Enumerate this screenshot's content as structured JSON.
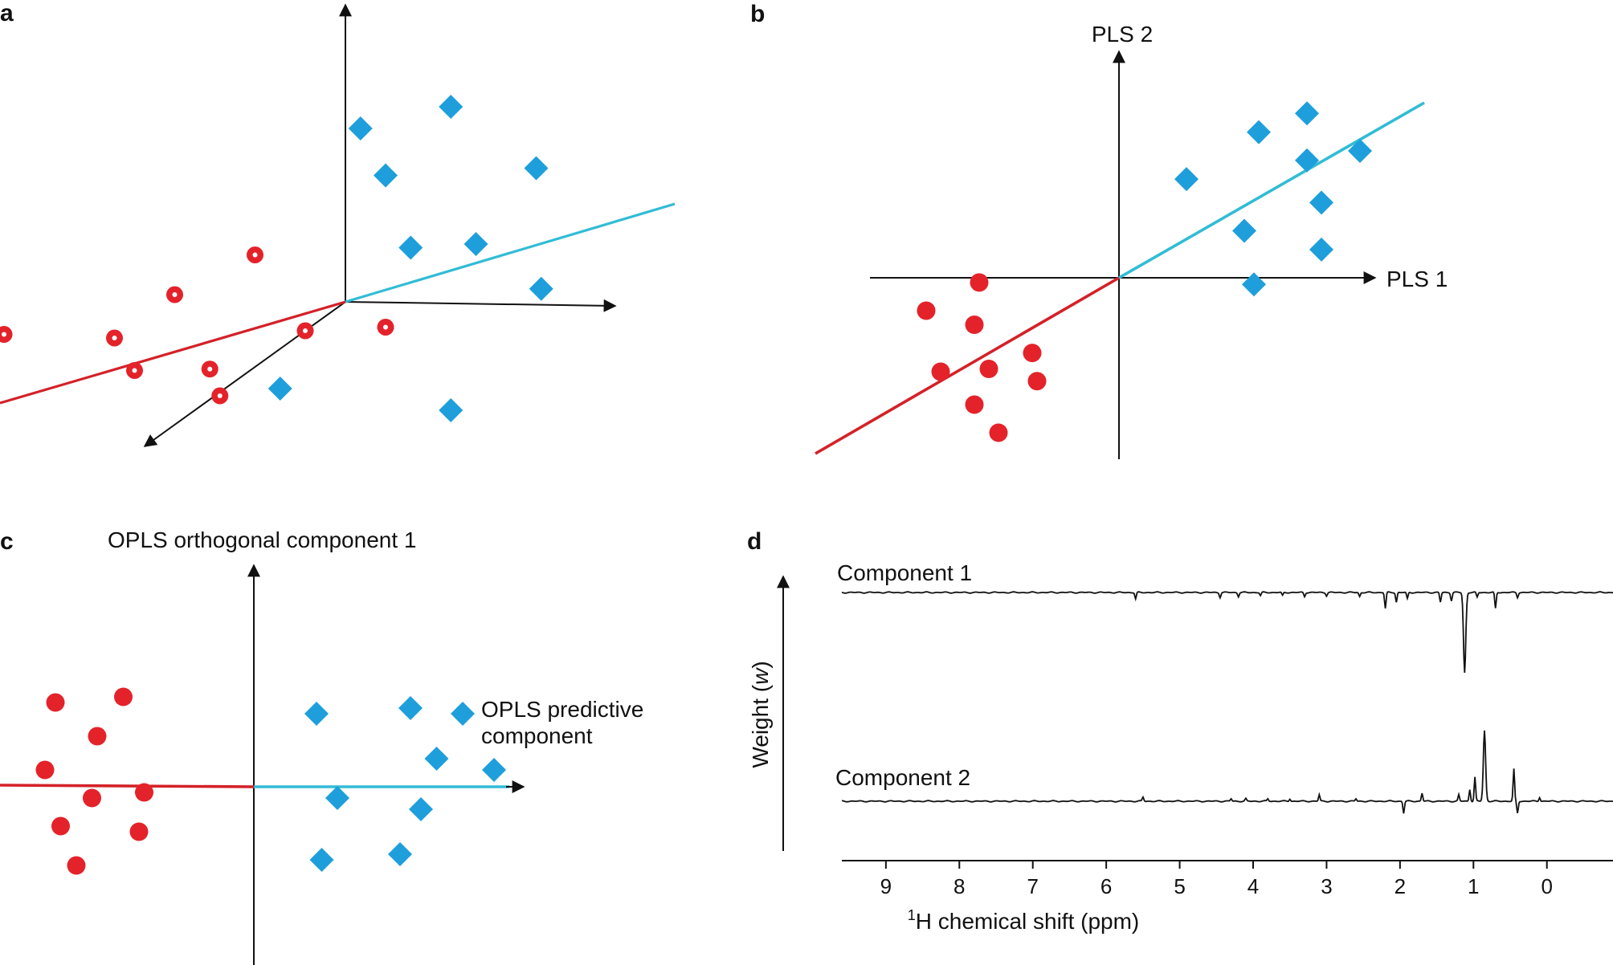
{
  "colors": {
    "group1": "#e4222a",
    "group2": "#1e9fdc",
    "line1": "#d42128",
    "line2": "#31bcd5",
    "axis": "#111111",
    "spectrum": "#111111"
  },
  "panels": {
    "a": {
      "label": "a"
    },
    "b": {
      "label": "b",
      "x_axis": "PLS 1",
      "y_axis": "PLS 2"
    },
    "c": {
      "label": "c",
      "y_axis": "OPLS orthogonal component 1",
      "x_axis_line1": "OPLS predictive",
      "x_axis_line2": "component"
    },
    "d": {
      "label": "d",
      "y_axis_prefix": "Weight (",
      "y_axis_var": "w",
      "y_axis_suffix": ")",
      "x_axis_sup": "1",
      "x_axis_text": "H chemical shift (ppm)",
      "trace1_label": "Component 1",
      "trace2_label": "Component 2"
    }
  },
  "chart_data": [
    {
      "panel": "a",
      "type": "scatter",
      "description_3d": true,
      "series": [
        {
          "name": "group-1-circles",
          "marker": "open-dot-circle",
          "points": [
            [
              -3.4,
              -0.45
            ],
            [
              -2.3,
              -0.5
            ],
            [
              -2.1,
              -0.95
            ],
            [
              -1.7,
              0.1
            ],
            [
              -1.35,
              -0.93
            ],
            [
              -1.25,
              -1.3
            ],
            [
              -0.9,
              0.65
            ],
            [
              -0.4,
              -0.4
            ],
            [
              0.4,
              -0.35
            ]
          ]
        },
        {
          "name": "group-2-diamonds",
          "marker": "diamond",
          "points": [
            [
              -0.65,
              -1.2
            ],
            [
              0.15,
              2.4
            ],
            [
              0.4,
              1.75
            ],
            [
              0.65,
              0.75
            ],
            [
              1.05,
              2.7
            ],
            [
              1.3,
              0.8
            ],
            [
              1.9,
              1.85
            ],
            [
              1.95,
              0.18
            ],
            [
              1.05,
              -1.5
            ]
          ]
        }
      ],
      "axes_3d": [
        "x",
        "y",
        "z"
      ]
    },
    {
      "panel": "b",
      "type": "scatter",
      "xlabel": "PLS 1",
      "ylabel": "PLS 2",
      "series": [
        {
          "name": "group-1",
          "marker": "circle",
          "points": [
            [
              -1.45,
              -0.05
            ],
            [
              -2.0,
              -0.35
            ],
            [
              -1.5,
              -0.5
            ],
            [
              -1.85,
              -1.0
            ],
            [
              -1.35,
              -0.97
            ],
            [
              -0.9,
              -0.8
            ],
            [
              -0.85,
              -1.1
            ],
            [
              -1.5,
              -1.35
            ],
            [
              -1.25,
              -1.65
            ]
          ]
        },
        {
          "name": "group-2",
          "marker": "diamond",
          "points": [
            [
              0.7,
              1.05
            ],
            [
              1.45,
              1.55
            ],
            [
              1.95,
              1.75
            ],
            [
              1.95,
              1.25
            ],
            [
              2.5,
              1.35
            ],
            [
              2.1,
              0.8
            ],
            [
              1.3,
              0.5
            ],
            [
              2.1,
              0.3
            ],
            [
              1.4,
              -0.07
            ]
          ]
        }
      ]
    },
    {
      "panel": "c",
      "type": "scatter",
      "xlabel": "OPLS predictive component",
      "ylabel": "OPLS orthogonal component 1",
      "series": [
        {
          "name": "group-1",
          "marker": "circle",
          "points": [
            [
              -1.9,
              0.75
            ],
            [
              -1.25,
              0.8
            ],
            [
              -1.5,
              0.45
            ],
            [
              -2.0,
              0.15
            ],
            [
              -1.55,
              -0.1
            ],
            [
              -1.05,
              -0.05
            ],
            [
              -1.85,
              -0.35
            ],
            [
              -1.1,
              -0.4
            ],
            [
              -1.7,
              -0.7
            ]
          ]
        },
        {
          "name": "group-2",
          "marker": "diamond",
          "points": [
            [
              0.6,
              0.65
            ],
            [
              1.5,
              0.7
            ],
            [
              2.0,
              0.65
            ],
            [
              1.75,
              0.25
            ],
            [
              2.3,
              0.15
            ],
            [
              0.8,
              -0.1
            ],
            [
              1.6,
              -0.2
            ],
            [
              0.65,
              -0.65
            ],
            [
              1.4,
              -0.6
            ]
          ]
        }
      ]
    },
    {
      "panel": "d",
      "type": "line",
      "xlabel": "1H chemical shift (ppm)",
      "ylabel": "Weight (w)",
      "xlim": [
        9.6,
        -0.9
      ],
      "x_reversed": true,
      "xticks": [
        9,
        8,
        7,
        6,
        5,
        4,
        3,
        2,
        1,
        0
      ],
      "series": [
        {
          "name": "Component 1",
          "baseline": 0,
          "peaks": [
            [
              5.6,
              -8
            ],
            [
              4.45,
              -6
            ],
            [
              4.2,
              -5
            ],
            [
              3.9,
              -4
            ],
            [
              3.6,
              -4
            ],
            [
              3.3,
              -5
            ],
            [
              3.0,
              -4
            ],
            [
              2.55,
              -5
            ],
            [
              2.2,
              -20
            ],
            [
              2.05,
              -12
            ],
            [
              1.9,
              -8
            ],
            [
              1.45,
              -12
            ],
            [
              1.3,
              -10
            ],
            [
              1.12,
              -100
            ],
            [
              0.95,
              -6
            ],
            [
              0.7,
              -20
            ],
            [
              0.4,
              -6
            ]
          ]
        },
        {
          "name": "Component 2",
          "baseline": 0,
          "peaks": [
            [
              5.5,
              5
            ],
            [
              4.3,
              3
            ],
            [
              4.1,
              3
            ],
            [
              3.8,
              3
            ],
            [
              3.5,
              3
            ],
            [
              3.1,
              8
            ],
            [
              2.6,
              3
            ],
            [
              1.95,
              -15
            ],
            [
              1.7,
              10
            ],
            [
              1.2,
              8
            ],
            [
              1.05,
              15
            ],
            [
              0.98,
              30
            ],
            [
              0.85,
              88
            ],
            [
              0.45,
              40
            ],
            [
              0.4,
              -15
            ],
            [
              0.1,
              5
            ]
          ]
        }
      ]
    }
  ]
}
